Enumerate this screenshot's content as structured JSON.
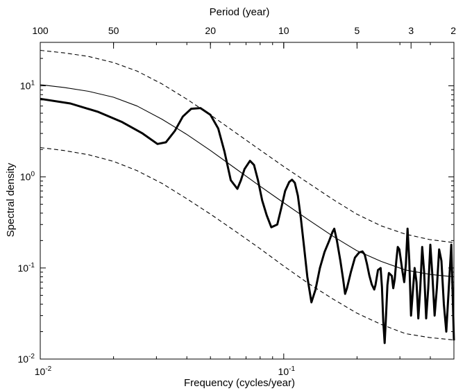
{
  "chart_data": {
    "type": "line",
    "title": "",
    "xlabel": "Frequency (cycles/year)",
    "ylabel": "Spectral density",
    "top_axis_label": "Period (year)",
    "xscale": "log",
    "yscale": "log",
    "xlim": [
      0.01,
      0.5
    ],
    "ylim": [
      0.01,
      30
    ],
    "grid": false,
    "x_ticks": [
      {
        "value": 0.01,
        "base": "10",
        "exp": "-2"
      },
      {
        "value": 0.1,
        "base": "10",
        "exp": "-1"
      }
    ],
    "y_ticks": [
      {
        "value": 0.01,
        "base": "10",
        "exp": "-2"
      },
      {
        "value": 0.1,
        "base": "10",
        "exp": "-1"
      },
      {
        "value": 1,
        "base": "10",
        "exp": "0"
      },
      {
        "value": 10,
        "base": "10",
        "exp": "1"
      }
    ],
    "top_ticks": [
      {
        "period": 100,
        "label": "100"
      },
      {
        "period": 50,
        "label": "50"
      },
      {
        "period": 20,
        "label": "20"
      },
      {
        "period": 10,
        "label": "10"
      },
      {
        "period": 5,
        "label": "5"
      },
      {
        "period": 3,
        "label": "3"
      },
      {
        "period": 2,
        "label": "2"
      }
    ],
    "series": [
      {
        "style": "thick-solid",
        "x": [
          0.01,
          0.0133,
          0.0172,
          0.0217,
          0.0263,
          0.0303,
          0.0328,
          0.0357,
          0.0385,
          0.0417,
          0.0455,
          0.05,
          0.0538,
          0.0571,
          0.0606,
          0.0645,
          0.0667,
          0.069,
          0.0727,
          0.0755,
          0.0784,
          0.0816,
          0.0851,
          0.0889,
          0.0941,
          0.0976,
          0.1013,
          0.1053,
          0.1081,
          0.1111,
          0.1143,
          0.1176,
          0.1212,
          0.125,
          0.1299,
          0.1351,
          0.1408,
          0.1471,
          0.1538,
          0.1587,
          0.1613,
          0.1653,
          0.1709,
          0.1754,
          0.1786,
          0.1818,
          0.1887,
          0.1961,
          0.2041,
          0.2105,
          0.2151,
          0.2198,
          0.2247,
          0.2299,
          0.2353,
          0.2381,
          0.2439,
          0.25,
          0.2532,
          0.2564,
          0.2597,
          0.2632,
          0.2667,
          0.2703,
          0.2778,
          0.2817,
          0.2857,
          0.2899,
          0.2941,
          0.2985,
          0.303,
          0.3077,
          0.3125,
          0.3175,
          0.3226,
          0.3279,
          0.3333,
          0.339,
          0.3448,
          0.3509,
          0.3571,
          0.3636,
          0.3704,
          0.3774,
          0.3846,
          0.3922,
          0.4,
          0.4082,
          0.4167,
          0.4255,
          0.4348,
          0.4444,
          0.4545,
          0.4651,
          0.4762,
          0.4878,
          0.5
        ],
        "y": [
          7.2,
          6.4,
          5.2,
          4.0,
          3.0,
          2.3,
          2.4,
          3.2,
          4.6,
          5.6,
          5.7,
          4.8,
          3.4,
          1.9,
          0.92,
          0.74,
          0.92,
          1.22,
          1.5,
          1.35,
          0.92,
          0.55,
          0.38,
          0.28,
          0.3,
          0.45,
          0.7,
          0.88,
          0.93,
          0.86,
          0.62,
          0.35,
          0.17,
          0.08,
          0.042,
          0.058,
          0.1,
          0.15,
          0.2,
          0.25,
          0.27,
          0.2,
          0.12,
          0.075,
          0.052,
          0.06,
          0.09,
          0.13,
          0.148,
          0.152,
          0.14,
          0.11,
          0.083,
          0.066,
          0.058,
          0.065,
          0.095,
          0.1,
          0.062,
          0.026,
          0.015,
          0.03,
          0.065,
          0.088,
          0.082,
          0.06,
          0.075,
          0.12,
          0.17,
          0.16,
          0.12,
          0.09,
          0.07,
          0.11,
          0.27,
          0.12,
          0.03,
          0.055,
          0.1,
          0.07,
          0.028,
          0.06,
          0.17,
          0.09,
          0.028,
          0.06,
          0.18,
          0.08,
          0.03,
          0.06,
          0.16,
          0.12,
          0.04,
          0.02,
          0.06,
          0.18,
          0.016
        ]
      },
      {
        "style": "thin-solid",
        "x": [
          0.01,
          0.0125,
          0.0158,
          0.02,
          0.025,
          0.0316,
          0.0398,
          0.05,
          0.063,
          0.0794,
          0.1,
          0.1259,
          0.1585,
          0.1995,
          0.2512,
          0.3162,
          0.3981,
          0.5
        ],
        "y": [
          10.3,
          9.6,
          8.7,
          7.5,
          6.0,
          4.3,
          2.95,
          1.95,
          1.25,
          0.8,
          0.52,
          0.34,
          0.225,
          0.155,
          0.118,
          0.095,
          0.085,
          0.08
        ]
      },
      {
        "style": "dashed",
        "x": [
          0.01,
          0.0125,
          0.0158,
          0.02,
          0.025,
          0.0316,
          0.0398,
          0.05,
          0.063,
          0.0794,
          0.1,
          0.1259,
          0.1585,
          0.1995,
          0.2512,
          0.3162,
          0.3981,
          0.5
        ],
        "y": [
          24.5,
          23.0,
          21.0,
          18.0,
          14.5,
          10.5,
          7.2,
          4.8,
          3.1,
          2.0,
          1.3,
          0.86,
          0.57,
          0.39,
          0.29,
          0.235,
          0.205,
          0.19
        ]
      },
      {
        "style": "dashed",
        "x": [
          0.01,
          0.0125,
          0.0158,
          0.02,
          0.025,
          0.0316,
          0.0398,
          0.05,
          0.063,
          0.0794,
          0.1,
          0.1259,
          0.1585,
          0.1995,
          0.2512,
          0.3162,
          0.3981,
          0.5
        ],
        "y": [
          2.1,
          1.95,
          1.75,
          1.48,
          1.17,
          0.85,
          0.58,
          0.39,
          0.255,
          0.165,
          0.105,
          0.068,
          0.046,
          0.032,
          0.024,
          0.019,
          0.0172,
          0.0162
        ]
      }
    ]
  }
}
